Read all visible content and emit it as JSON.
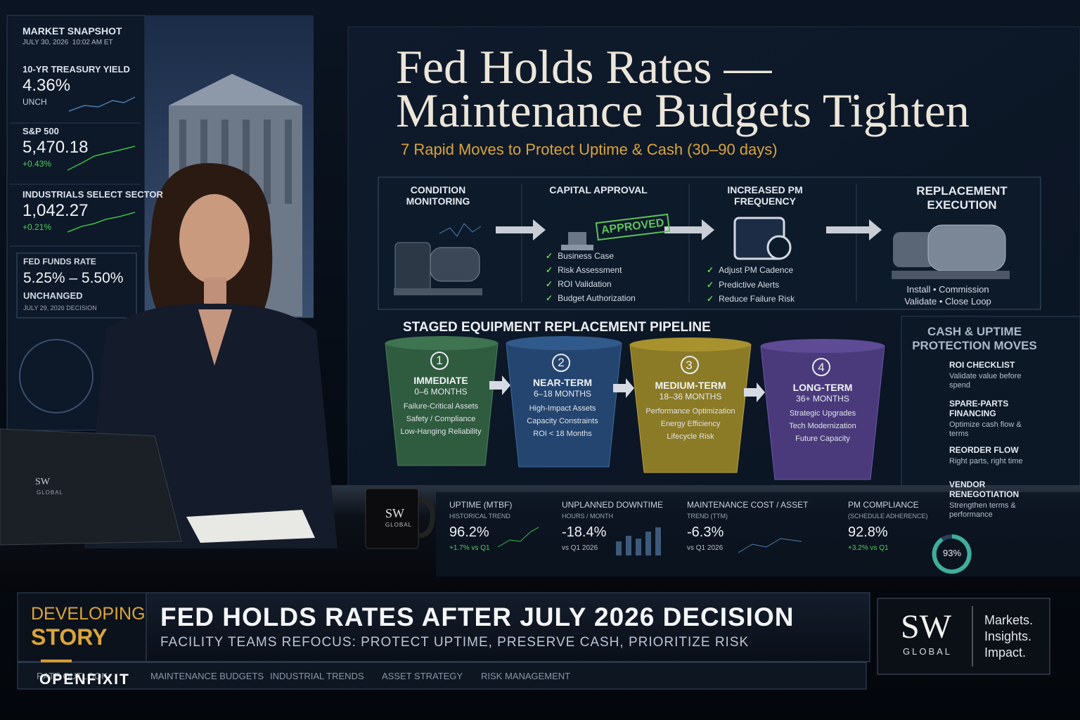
{
  "market_snapshot": {
    "title": "MARKET SNAPSHOT",
    "timestamp": "JULY 30, 2026  10:02 AM ET",
    "items": [
      {
        "label": "10-YR TREASURY YIELD",
        "value": "4.36%",
        "change": "UNCH"
      },
      {
        "label": "S&P 500",
        "value": "5,470.18",
        "change": "+0.43%"
      },
      {
        "label": "INDUSTRIALS SELECT SECTOR",
        "value": "1,042.27",
        "change": "+0.21%"
      }
    ],
    "fed_funds": {
      "label": "FED FUNDS RATE",
      "value": "5.25% – 5.50%",
      "status": "UNCHANGED",
      "note": "JULY 29, 2026 DECISION"
    }
  },
  "screen": {
    "title_line1": "Fed Holds Rates —",
    "title_line2": "Maintenance Budgets Tighten",
    "subtitle": "7 Rapid Moves to Protect Uptime & Cash (30–90 days)",
    "steps": [
      {
        "title": "CONDITION MONITORING"
      },
      {
        "title": "CAPITAL APPROVAL",
        "stamp": "APPROVED",
        "checks": [
          "Business Case",
          "Risk Assessment",
          "ROI Validation",
          "Budget Authorization"
        ]
      },
      {
        "title": "INCREASED PM FREQUENCY",
        "checks": [
          "Adjust PM Cadence",
          "Predictive Alerts",
          "Reduce Failure Risk"
        ]
      },
      {
        "title": "REPLACEMENT EXECUTION",
        "lines": [
          "Install • Commission",
          "Validate • Close Loop"
        ]
      }
    ],
    "pipeline": {
      "title": "STAGED EQUIPMENT REPLACEMENT PIPELINE",
      "stages": [
        {
          "number": "1",
          "name": "IMMEDIATE",
          "horizon": "0–6 MONTHS",
          "items": [
            "Failure-Critical Assets",
            "Safety / Compliance",
            "Low-Hanging Reliability"
          ]
        },
        {
          "number": "2",
          "name": "NEAR-TERM",
          "horizon": "6–18 MONTHS",
          "items": [
            "High-Impact Assets",
            "Capacity Constraints",
            "ROI < 18 Months"
          ]
        },
        {
          "number": "3",
          "name": "MEDIUM-TERM",
          "horizon": "18–36 MONTHS",
          "items": [
            "Performance Optimization",
            "Energy Efficiency",
            "Lifecycle Risk"
          ]
        },
        {
          "number": "4",
          "name": "LONG-TERM",
          "horizon": "36+ MONTHS",
          "items": [
            "Strategic Upgrades",
            "Tech Modernization",
            "Future Capacity"
          ]
        }
      ]
    },
    "moves": {
      "title": "CASH & UPTIME PROTECTION MOVES",
      "items": [
        {
          "title": "ROI CHECKLIST",
          "text": "Validate value before spend"
        },
        {
          "title": "SPARE-PARTS FINANCING",
          "text": "Optimize cash flow & terms"
        },
        {
          "title": "REORDER FLOW",
          "text": "Right parts, right time"
        },
        {
          "title": "VENDOR RENEGOTIATION",
          "text": "Strengthen terms & performance"
        }
      ]
    },
    "kpis": [
      {
        "label": "UPTIME (MTBF)",
        "sublabel": "HISTORICAL TREND",
        "value": "96.2%",
        "change": "+1.7% vs Q1"
      },
      {
        "label": "UNPLANNED DOWNTIME",
        "sublabel": "HOURS / MONTH",
        "value": "-18.4%",
        "change": "vs Q1 2026"
      },
      {
        "label": "MAINTENANCE COST / ASSET",
        "sublabel": "TREND (TTM)",
        "value": "-6.3%",
        "change": "vs Q1 2026"
      },
      {
        "label": "PM COMPLIANCE",
        "sublabel": "(SCHEDULE ADHERENCE)",
        "value": "92.8%",
        "change": "+3.2% vs Q1"
      }
    ],
    "pm_gauge": "93%"
  },
  "lower_third": {
    "tag_line1": "DEVELOPING",
    "tag_line2": "STORY",
    "headline": "FED HOLDS RATES AFTER JULY 2026 DECISION",
    "subheadline": "FACILITY TEAMS REFOCUS: PROTECT UPTIME, PRESERVE CASH, PRIORITIZE RISK",
    "ticker": [
      "RATE OUTLOOK",
      "MAINTENANCE BUDGETS",
      "INDUSTRIAL TRENDS",
      "ASSET STRATEGY",
      "RISK MANAGEMENT"
    ]
  },
  "logo": {
    "mark": "SW",
    "name": "GLOBAL",
    "tagline": [
      "Markets.",
      "Insights.",
      "Impact."
    ]
  },
  "props": {
    "laptop_mark": "SW",
    "laptop_name": "GLOBAL",
    "mug_mark": "SW",
    "mug_name": "GLOBAL"
  },
  "watermark": "OPENFIXIT"
}
